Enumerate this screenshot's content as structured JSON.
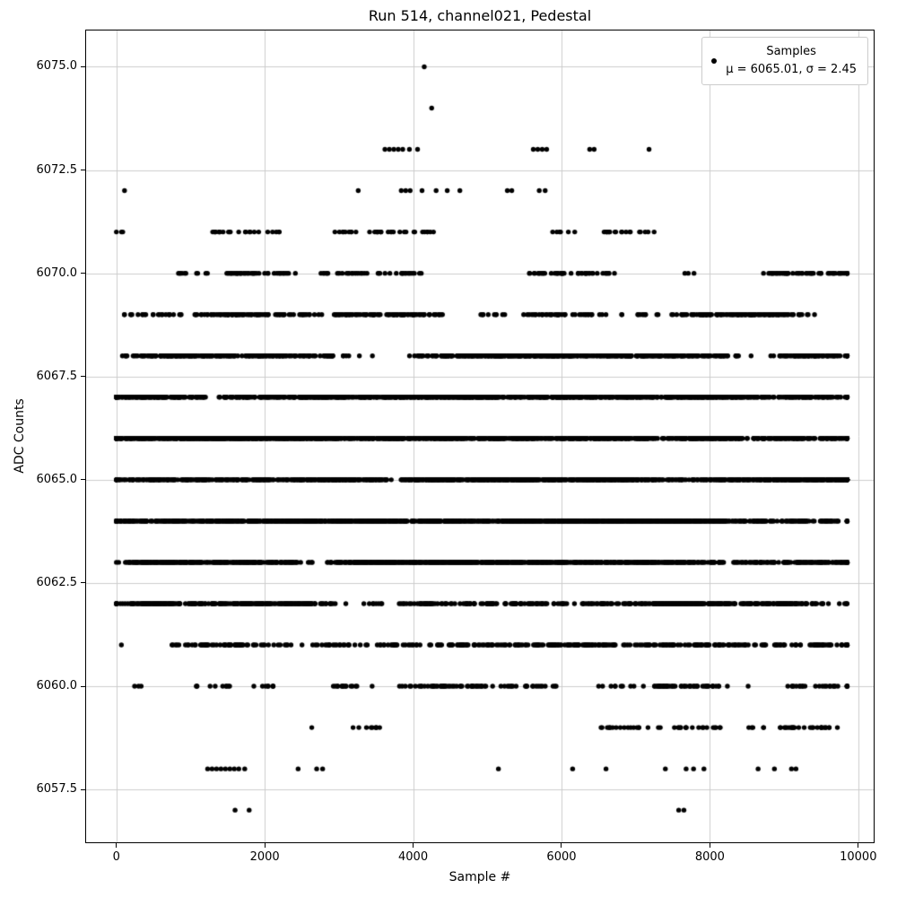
{
  "chart_data": {
    "type": "scatter",
    "title": "Run 514, channel021, Pedestal",
    "xlabel": "Sample #",
    "ylabel": "ADC Counts",
    "xlim": [
      -420,
      10220
    ],
    "ylim": [
      6056.2,
      6075.9
    ],
    "x_ticks": [
      0,
      2000,
      4000,
      6000,
      8000,
      10000
    ],
    "y_ticks": [
      6057.5,
      6060.0,
      6062.5,
      6065.0,
      6067.5,
      6070.0,
      6072.5,
      6075.0
    ],
    "grid": true,
    "grid_color": "#cccccc",
    "marker_color": "#000000",
    "legend": {
      "position": "upper right",
      "line1": "Samples",
      "line2": "μ = 6065.01, σ = 2.45"
    },
    "stats": {
      "mean": 6065.01,
      "sigma": 2.45
    },
    "x_range": [
      0,
      9850
    ],
    "levels": [
      {
        "adc": 6075,
        "x": [
          4150
        ]
      },
      {
        "adc": 6074,
        "x": [
          4250
        ]
      },
      {
        "adc": 6073,
        "x": [
          3620,
          3680,
          3740,
          3800,
          3860,
          3950,
          4060,
          5620,
          5680,
          5740,
          5800,
          6380,
          6440,
          7180
        ]
      },
      {
        "adc": 6072,
        "x": [
          110,
          3260,
          3840,
          3900,
          3960,
          4120,
          4310,
          4460,
          4630,
          5270,
          5330,
          5700,
          5780
        ]
      },
      {
        "adc": 6071,
        "count": 85
      },
      {
        "adc": 6070,
        "count": 205
      },
      {
        "adc": 6069,
        "count": 430
      },
      {
        "adc": 6068,
        "count": 765
      },
      {
        "adc": 6067,
        "count": 1150
      },
      {
        "adc": 6066,
        "count": 1480
      },
      {
        "adc": 6065,
        "count": 1605
      },
      {
        "adc": 6064,
        "count": 1475
      },
      {
        "adc": 6063,
        "count": 1145
      },
      {
        "adc": 6062,
        "count": 755
      },
      {
        "adc": 6061,
        "count": 420
      },
      {
        "adc": 6060,
        "count": 200
      },
      {
        "adc": 6059,
        "count": 80
      },
      {
        "adc": 6058,
        "x": [
          1230,
          1290,
          1350,
          1410,
          1470,
          1530,
          1590,
          1650,
          1730,
          2450,
          2700,
          2780,
          5150,
          6150,
          6600,
          7400,
          7680,
          7780,
          7920,
          8650,
          8870,
          9100,
          9160
        ]
      },
      {
        "adc": 6057,
        "x": [
          1600,
          1790,
          7580,
          7650
        ]
      }
    ]
  }
}
